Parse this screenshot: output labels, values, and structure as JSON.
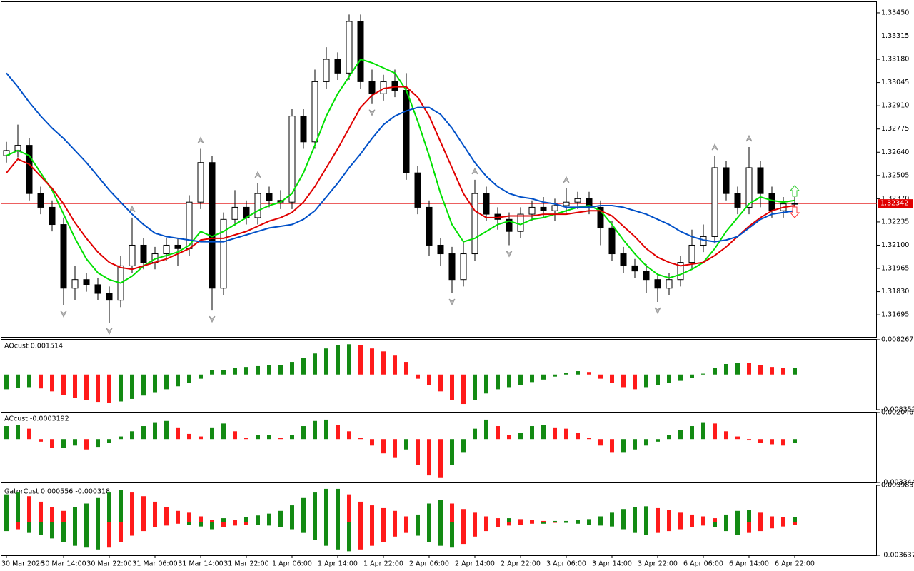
{
  "chart_data": [
    {
      "type": "candlestick",
      "categories": [
        "30 Mar 2026",
        null,
        null,
        null,
        null,
        "30 Mar 14:00",
        null,
        null,
        null,
        "30 Mar 22:00",
        null,
        null,
        null,
        "31 Mar 06:00",
        null,
        null,
        null,
        "31 Mar 14:00",
        null,
        null,
        null,
        "31 Mar 22:00",
        null,
        null,
        null,
        "1 Apr 06:00",
        null,
        null,
        null,
        "1 Apr 14:00",
        null,
        null,
        null,
        "1 Apr 22:00",
        null,
        null,
        null,
        "2 Apr 06:00",
        null,
        null,
        null,
        "2 Apr 14:00",
        null,
        null,
        null,
        "2 Apr 22:00",
        null,
        null,
        null,
        "3 Apr 06:00",
        null,
        null,
        null,
        "3 Apr 14:00",
        null,
        null,
        null,
        "3 Apr 22:00",
        null,
        null,
        null,
        "6 Apr 06:00",
        null,
        null,
        null,
        "6 Apr 14:00",
        null,
        null,
        null,
        "6 Apr 22:00"
      ],
      "open": [
        1.3262,
        1.3265,
        1.3268,
        1.324,
        1.3232,
        1.3222,
        1.3185,
        1.319,
        1.3187,
        1.3182,
        1.3178,
        1.3198,
        1.321,
        1.32,
        1.3205,
        1.321,
        1.3208,
        1.3235,
        1.3258,
        1.3185,
        1.3225,
        1.3232,
        1.3226,
        1.324,
        1.3236,
        1.3235,
        1.3285,
        1.327,
        1.3305,
        1.3318,
        1.331,
        1.334,
        1.3305,
        1.3298,
        1.3305,
        1.33,
        1.3252,
        1.3232,
        1.321,
        1.3205,
        1.319,
        1.3205,
        1.324,
        1.3228,
        1.3225,
        1.3218,
        1.3228,
        1.3232,
        1.323,
        1.3233,
        1.3235,
        1.3237,
        1.3232,
        1.322,
        1.3205,
        1.3198,
        1.3195,
        1.319,
        1.3185,
        1.319,
        1.32,
        1.321,
        1.3215,
        1.3255,
        1.324,
        1.3232,
        1.3255,
        1.324,
        1.323,
        1.3234
      ],
      "high": [
        1.327,
        1.328,
        1.3272,
        1.3244,
        1.3236,
        1.3226,
        1.3198,
        1.3194,
        1.3191,
        1.3186,
        1.3204,
        1.3226,
        1.3214,
        1.3209,
        1.3214,
        1.3214,
        1.3239,
        1.3266,
        1.3262,
        1.3229,
        1.3242,
        1.3236,
        1.3246,
        1.3244,
        1.3242,
        1.3289,
        1.3289,
        1.3312,
        1.3325,
        1.3322,
        1.3344,
        1.3344,
        1.3312,
        1.3309,
        1.3312,
        1.331,
        1.3256,
        1.3236,
        1.3214,
        1.3209,
        1.3212,
        1.3248,
        1.3244,
        1.3232,
        1.3229,
        1.3232,
        1.3236,
        1.3238,
        1.3237,
        1.3243,
        1.3241,
        1.3241,
        1.3236,
        1.3224,
        1.3209,
        1.3202,
        1.3199,
        1.3194,
        1.3194,
        1.3204,
        1.3219,
        1.3222,
        1.3262,
        1.3259,
        1.3244,
        1.3267,
        1.3259,
        1.3244,
        1.3238,
        1.3238
      ],
      "low": [
        1.3258,
        1.3261,
        1.3236,
        1.3228,
        1.3218,
        1.3175,
        1.3178,
        1.3183,
        1.3178,
        1.3165,
        1.3174,
        1.3194,
        1.3196,
        1.3196,
        1.3201,
        1.3198,
        1.3204,
        1.3231,
        1.3172,
        1.3181,
        1.3221,
        1.3222,
        1.3222,
        1.3232,
        1.3231,
        1.3231,
        1.3266,
        1.3266,
        1.3301,
        1.3306,
        1.3306,
        1.3301,
        1.3292,
        1.3294,
        1.3296,
        1.3248,
        1.3228,
        1.3204,
        1.3198,
        1.3182,
        1.3186,
        1.3201,
        1.3224,
        1.3219,
        1.321,
        1.3214,
        1.3224,
        1.3226,
        1.3224,
        1.3229,
        1.3231,
        1.3228,
        1.321,
        1.3201,
        1.3194,
        1.3191,
        1.3182,
        1.3177,
        1.3181,
        1.3186,
        1.3196,
        1.3206,
        1.3211,
        1.3236,
        1.3228,
        1.3228,
        1.3232,
        1.3226,
        1.3226,
        1.3232
      ],
      "close": [
        1.3265,
        1.3268,
        1.324,
        1.3232,
        1.3222,
        1.3185,
        1.319,
        1.3187,
        1.3182,
        1.3178,
        1.3198,
        1.321,
        1.32,
        1.3205,
        1.321,
        1.3208,
        1.3235,
        1.3258,
        1.3185,
        1.3225,
        1.3232,
        1.3226,
        1.324,
        1.3236,
        1.3235,
        1.3285,
        1.327,
        1.3305,
        1.3318,
        1.331,
        1.334,
        1.3305,
        1.3298,
        1.3305,
        1.33,
        1.3252,
        1.3232,
        1.321,
        1.3205,
        1.319,
        1.3205,
        1.324,
        1.3228,
        1.3225,
        1.3218,
        1.3228,
        1.3232,
        1.323,
        1.3233,
        1.3235,
        1.3237,
        1.3232,
        1.322,
        1.3205,
        1.3198,
        1.3195,
        1.319,
        1.3185,
        1.319,
        1.32,
        1.321,
        1.3215,
        1.3255,
        1.324,
        1.3232,
        1.3255,
        1.324,
        1.323,
        1.3234,
        1.32342
      ],
      "up_color": "#ffffff",
      "down_color": "#000000",
      "series": [
        {
          "color": "#00e000",
          "values": [
            1.3262,
            1.3265,
            1.3262,
            1.3252,
            1.3242,
            1.3228,
            1.3214,
            1.3202,
            1.3194,
            1.319,
            1.3188,
            1.3192,
            1.3198,
            1.3202,
            1.3204,
            1.3206,
            1.321,
            1.3218,
            1.3215,
            1.3218,
            1.3222,
            1.3226,
            1.323,
            1.3233,
            1.3235,
            1.324,
            1.3252,
            1.3268,
            1.3285,
            1.3298,
            1.3308,
            1.3318,
            1.3316,
            1.3313,
            1.331,
            1.33,
            1.3282,
            1.3262,
            1.324,
            1.3222,
            1.3212,
            1.3214,
            1.3218,
            1.3222,
            1.3224,
            1.3222,
            1.3225,
            1.3226,
            1.3228,
            1.323,
            1.3232,
            1.3233,
            1.323,
            1.3222,
            1.3213,
            1.3205,
            1.3198,
            1.3193,
            1.3191,
            1.3193,
            1.3196,
            1.32,
            1.3208,
            1.3218,
            1.3226,
            1.3234,
            1.3238,
            1.3236,
            1.3235,
            1.3236
          ]
        },
        {
          "color": "#e00000",
          "values": [
            1.3252,
            1.326,
            1.3257,
            1.325,
            1.3243,
            1.3234,
            1.3223,
            1.3214,
            1.3206,
            1.32,
            1.3197,
            1.3196,
            1.3198,
            1.32,
            1.3202,
            1.3205,
            1.3208,
            1.3213,
            1.3214,
            1.3214,
            1.3216,
            1.3218,
            1.3221,
            1.3224,
            1.3226,
            1.3229,
            1.3235,
            1.3244,
            1.3255,
            1.3266,
            1.3278,
            1.329,
            1.3297,
            1.3301,
            1.3302,
            1.3302,
            1.3296,
            1.3285,
            1.327,
            1.3255,
            1.324,
            1.323,
            1.3226,
            1.3226,
            1.3227,
            1.3227,
            1.3227,
            1.3228,
            1.3228,
            1.3228,
            1.3229,
            1.323,
            1.323,
            1.3227,
            1.3221,
            1.3215,
            1.3208,
            1.3203,
            1.32,
            1.3198,
            1.3199,
            1.32,
            1.3204,
            1.3209,
            1.3215,
            1.3221,
            1.3226,
            1.323,
            1.3232,
            1.3233
          ]
        },
        {
          "color": "#0050c8",
          "values": [
            1.331,
            1.3302,
            1.3293,
            1.3285,
            1.3278,
            1.3272,
            1.3265,
            1.3258,
            1.325,
            1.3242,
            1.3235,
            1.3228,
            1.3222,
            1.3217,
            1.3215,
            1.3214,
            1.3213,
            1.3212,
            1.3212,
            1.3212,
            1.3214,
            1.3216,
            1.3218,
            1.322,
            1.3221,
            1.3222,
            1.3225,
            1.323,
            1.3238,
            1.3246,
            1.3255,
            1.3263,
            1.3272,
            1.328,
            1.3285,
            1.3288,
            1.329,
            1.329,
            1.3286,
            1.3278,
            1.3268,
            1.3258,
            1.325,
            1.3244,
            1.324,
            1.3238,
            1.3237,
            1.3235,
            1.3234,
            1.3232,
            1.3232,
            1.3232,
            1.3233,
            1.3233,
            1.3232,
            1.323,
            1.3228,
            1.3225,
            1.3222,
            1.3218,
            1.3215,
            1.3213,
            1.3212,
            1.3213,
            1.3215,
            1.322,
            1.3225,
            1.3228,
            1.3229,
            1.323
          ]
        }
      ],
      "current_price": 1.32342,
      "current_price_color": "#e00000",
      "ylim": [
        1.31567,
        1.33512
      ],
      "yticks": [
        {
          "value": 1.31695,
          "label": "1.31695"
        },
        {
          "value": 1.3183,
          "label": "1.31830"
        },
        {
          "value": 1.31965,
          "label": "1.31965"
        },
        {
          "value": 1.321,
          "label": "1.32100"
        },
        {
          "value": 1.32235,
          "label": "1.32235"
        },
        {
          "value": 1.3237,
          "label": "1.32370"
        },
        {
          "value": 1.32505,
          "label": "1.32505"
        },
        {
          "value": 1.3264,
          "label": "1.32640"
        },
        {
          "value": 1.32775,
          "label": "1.32775"
        },
        {
          "value": 1.3291,
          "label": "1.32910"
        },
        {
          "value": 1.33045,
          "label": "1.33045"
        },
        {
          "value": 1.3318,
          "label": "1.33180"
        },
        {
          "value": 1.33315,
          "label": "1.33315"
        },
        {
          "value": 1.3345,
          "label": "1.33450"
        }
      ]
    },
    {
      "type": "bar",
      "title": "AOcust 0.001514",
      "up_color": "#138a13",
      "down_color": "#ff1a1a",
      "values": [
        -0.0035,
        -0.0032,
        -0.003,
        -0.0033,
        -0.004,
        -0.0048,
        -0.0055,
        -0.006,
        -0.0065,
        -0.0068,
        -0.0064,
        -0.0058,
        -0.005,
        -0.0042,
        -0.0035,
        -0.0028,
        -0.002,
        -0.001,
        0.001,
        0.0011,
        0.0015,
        0.0018,
        0.002,
        0.0022,
        0.0023,
        0.003,
        0.004,
        0.005,
        0.0062,
        0.007,
        0.0072,
        0.007,
        0.0062,
        0.0055,
        0.0045,
        0.003,
        -0.001,
        -0.0025,
        -0.004,
        -0.006,
        -0.007,
        -0.006,
        -0.0045,
        -0.0035,
        -0.003,
        -0.0025,
        -0.0018,
        -0.0012,
        -0.0005,
        0.0003,
        0.0008,
        0.0006,
        -0.001,
        -0.002,
        -0.003,
        -0.0035,
        -0.003,
        -0.0025,
        -0.002,
        -0.0015,
        -0.0008,
        0.0002,
        0.0015,
        0.0025,
        0.0028,
        0.0027,
        0.0022,
        0.0018,
        0.0015,
        0.001514
      ],
      "ylim": [
        -0.008352,
        0.008267
      ],
      "yticks": [
        -0.008352,
        0.008267
      ]
    },
    {
      "type": "bar",
      "title": "ACcust -0.0003192",
      "up_color": "#138a13",
      "down_color": "#ff1a1a",
      "values": [
        0.001,
        0.0011,
        0.0008,
        -0.0002,
        -0.0007,
        -0.0007,
        -0.0005,
        -0.0008,
        -0.0006,
        -0.0003,
        0.0002,
        0.0006,
        0.001,
        0.0013,
        0.0014,
        0.0009,
        0.0004,
        0.0002,
        0.0009,
        0.0012,
        0.0006,
        0.0001,
        0.0003,
        0.0003,
        0.0001,
        0.0003,
        0.001,
        0.0014,
        0.0015,
        0.0011,
        0.0006,
        0.0001,
        -0.0005,
        -0.0011,
        -0.0014,
        -0.0008,
        -0.002,
        -0.0028,
        -0.003,
        -0.002,
        -0.001,
        0.0008,
        0.0015,
        0.001,
        0.0003,
        0.0005,
        0.001,
        0.0011,
        0.0009,
        0.0008,
        0.0005,
        0.0001,
        -0.0005,
        -0.001,
        -0.001,
        -0.0008,
        -0.0005,
        -0.0002,
        0.0003,
        0.0007,
        0.001,
        0.0013,
        0.0012,
        0.0006,
        0.0002,
        -0.0001,
        -0.0003,
        -0.0004,
        -0.0005,
        -0.0003192
      ],
      "ylim": [
        -0.0033442,
        0.0020465
      ],
      "yticks": [
        -0.0033442,
        0.0020465
      ]
    },
    {
      "type": "gator",
      "title": "GatorCust 0.000556 -0.000318",
      "up_color": "#138a13",
      "down_color": "#ff1a1a",
      "series": [
        {
          "values": [
            0.003,
            0.0032,
            0.0028,
            0.0022,
            0.0016,
            0.0012,
            0.0016,
            0.002,
            0.0026,
            0.0032,
            0.0035,
            0.0032,
            0.0028,
            0.0022,
            0.0016,
            0.0012,
            0.001,
            0.0006,
            0.0002,
            0.0004,
            0.0002,
            0.0005,
            0.0007,
            0.0009,
            0.0012,
            0.0018,
            0.0026,
            0.0032,
            0.0036,
            0.0036,
            0.003,
            0.0022,
            0.0018,
            0.0015,
            0.0012,
            0.0006,
            0.0008,
            0.002,
            0.0024,
            0.002,
            0.0014,
            0.001,
            0.0006,
            0.0004,
            0.0004,
            0.0003,
            0.0002,
            0.0001,
            0.0001,
            0.0001,
            0.0002,
            0.0003,
            0.0006,
            0.001,
            0.0014,
            0.0016,
            0.0017,
            0.0015,
            0.0013,
            0.001,
            0.0008,
            0.0006,
            0.0004,
            0.0008,
            0.0012,
            0.0013,
            0.001,
            0.0006,
            0.0005,
            0.000556
          ]
        },
        {
          "values": [
            -0.001,
            -0.0008,
            -0.0012,
            -0.0014,
            -0.0018,
            -0.0022,
            -0.0026,
            -0.0028,
            -0.003,
            -0.0028,
            -0.0022,
            -0.0015,
            -0.001,
            -0.0006,
            -0.0004,
            -0.0002,
            -0.0003,
            -0.0005,
            -0.0008,
            -0.0006,
            -0.0004,
            -0.0003,
            -0.0003,
            -0.0004,
            -0.0006,
            -0.0008,
            -0.0012,
            -0.002,
            -0.0026,
            -0.003,
            -0.0032,
            -0.003,
            -0.0026,
            -0.0022,
            -0.0016,
            -0.0012,
            -0.0015,
            -0.0022,
            -0.0026,
            -0.0028,
            -0.0024,
            -0.0016,
            -0.001,
            -0.0006,
            -0.0004,
            -0.0003,
            -0.0002,
            -0.0002,
            -0.0001,
            -0.0001,
            -0.0002,
            -0.0003,
            -0.0004,
            -0.0005,
            -0.0008,
            -0.0012,
            -0.0014,
            -0.0012,
            -0.001,
            -0.0008,
            -0.0006,
            -0.0004,
            -0.0006,
            -0.001,
            -0.0014,
            -0.0012,
            -0.001,
            -0.0007,
            -0.0005,
            -0.000318
          ]
        }
      ],
      "ylim": [
        -0.003637,
        0.003983
      ],
      "yticks": [
        -0.003637,
        0.003983
      ]
    }
  ]
}
